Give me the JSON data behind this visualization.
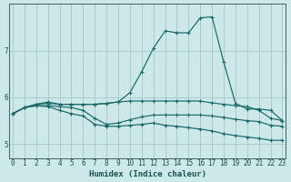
{
  "xlabel": "Humidex (Indice chaleur)",
  "bg_color": "#cce8e8",
  "grid_color": "#aacccc",
  "line_color": "#1a6868",
  "x_ticks": [
    0,
    1,
    2,
    3,
    4,
    5,
    6,
    7,
    8,
    9,
    10,
    11,
    12,
    13,
    14,
    15,
    16,
    17,
    18,
    19,
    20,
    21,
    22,
    23
  ],
  "y_ticks": [
    5,
    6,
    7
  ],
  "ylim": [
    4.7,
    8.0
  ],
  "xlim": [
    -0.3,
    23.3
  ],
  "series": [
    [
      5.65,
      5.78,
      5.85,
      5.9,
      5.85,
      5.85,
      5.85,
      5.85,
      5.87,
      5.9,
      6.1,
      6.55,
      7.05,
      7.42,
      7.38,
      7.38,
      7.7,
      7.72,
      6.75,
      5.87,
      5.75,
      5.75,
      5.72,
      5.5
    ],
    [
      5.65,
      5.78,
      5.85,
      5.87,
      5.85,
      5.85,
      5.85,
      5.85,
      5.87,
      5.9,
      5.92,
      5.92,
      5.92,
      5.92,
      5.92,
      5.92,
      5.92,
      5.88,
      5.85,
      5.82,
      5.8,
      5.72,
      5.55,
      5.5
    ],
    [
      5.65,
      5.78,
      5.82,
      5.82,
      5.8,
      5.78,
      5.72,
      5.55,
      5.42,
      5.45,
      5.52,
      5.58,
      5.62,
      5.62,
      5.62,
      5.62,
      5.62,
      5.6,
      5.57,
      5.53,
      5.5,
      5.48,
      5.4,
      5.38
    ],
    [
      5.65,
      5.78,
      5.82,
      5.8,
      5.72,
      5.65,
      5.6,
      5.42,
      5.38,
      5.38,
      5.4,
      5.42,
      5.45,
      5.4,
      5.38,
      5.35,
      5.32,
      5.28,
      5.22,
      5.18,
      5.15,
      5.12,
      5.08,
      5.08
    ]
  ]
}
